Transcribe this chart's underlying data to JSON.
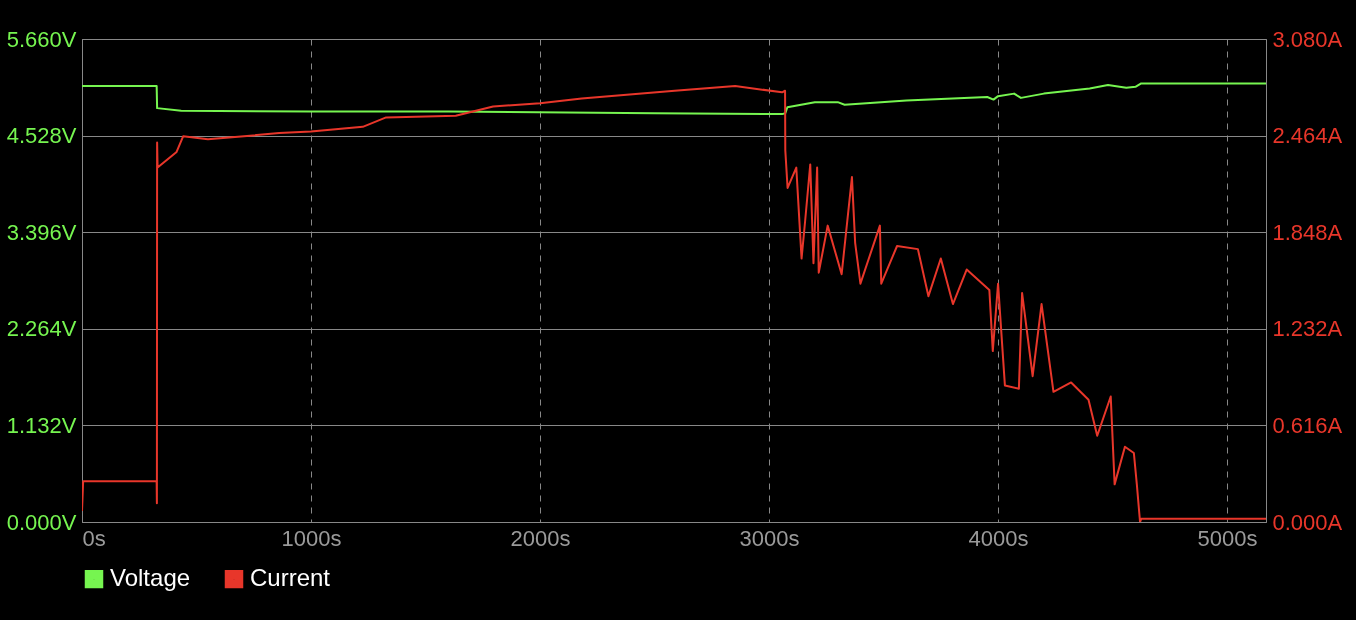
{
  "chart_data": {
    "type": "line",
    "grid": true,
    "legend": "bottom",
    "marker": "none",
    "line_style": "solid",
    "xlim": [
      0,
      5170
    ],
    "xticks": [
      {
        "value": 0,
        "label": "0s"
      },
      {
        "value": 1000,
        "label": "1000s"
      },
      {
        "value": 2000,
        "label": "2000s"
      },
      {
        "value": 3000,
        "label": "3000s"
      },
      {
        "value": 4000,
        "label": "4000s"
      },
      {
        "value": 5000,
        "label": "5000s"
      }
    ],
    "ylim": [
      0,
      5.66
    ],
    "yticks": [
      {
        "value": 0,
        "label": "0.000V"
      },
      {
        "value": 1.132,
        "label": "1.132V"
      },
      {
        "value": 2.264,
        "label": "2.264V"
      },
      {
        "value": 3.396,
        "label": "3.396V"
      },
      {
        "value": 4.528,
        "label": "4.528V"
      },
      {
        "value": 5.66,
        "label": "5.660V"
      }
    ],
    "y2lim": [
      0,
      3.08
    ],
    "y2ticks": [
      {
        "value": 0,
        "label": "0.000A"
      },
      {
        "value": 0.616,
        "label": "0.616A"
      },
      {
        "value": 1.232,
        "label": "1.232A"
      },
      {
        "value": 1.848,
        "label": "1.848A"
      },
      {
        "value": 2.464,
        "label": "2.464A"
      },
      {
        "value": 3.08,
        "label": "3.080A"
      }
    ],
    "series": [
      {
        "name": "Voltage",
        "color": "#76f550",
        "x": [
          0,
          326,
          328,
          433,
          1000,
          1600,
          2500,
          3057,
          3071,
          3080,
          3200,
          3300,
          3330,
          3600,
          3953,
          3980,
          4000,
          4070,
          4100,
          4200,
          4400,
          4480,
          4560,
          4600,
          4625,
          5170
        ],
        "values": [
          5.11,
          5.11,
          4.85,
          4.82,
          4.81,
          4.81,
          4.79,
          4.78,
          4.79,
          4.86,
          4.92,
          4.92,
          4.89,
          4.94,
          4.98,
          4.95,
          4.99,
          5.02,
          4.97,
          5.02,
          5.08,
          5.12,
          5.09,
          5.1,
          5.14,
          5.14
        ]
      },
      {
        "name": "Current",
        "color": "#e8362a",
        "axis": "y2",
        "x": [
          0,
          5,
          326,
          327,
          328,
          330,
          413,
          442,
          550,
          861,
          1000,
          1226,
          1328,
          1632,
          1795,
          2000,
          2182,
          2588,
          2852,
          3057,
          3070,
          3071,
          3081,
          3119,
          3142,
          3157,
          3180,
          3194,
          3210,
          3217,
          3256,
          3317,
          3362,
          3376,
          3399,
          3484,
          3490,
          3559,
          3650,
          3696,
          3750,
          3803,
          3863,
          3962,
          3977,
          4000,
          4030,
          4091,
          4105,
          4151,
          4190,
          4242,
          4319,
          4395,
          4433,
          4492,
          4509,
          4554,
          4593,
          4606,
          4620,
          4625,
          5170
        ],
        "values": [
          0.07,
          0.26,
          0.26,
          0.12,
          2.42,
          2.26,
          2.36,
          2.46,
          2.44,
          2.48,
          2.49,
          2.52,
          2.58,
          2.59,
          2.65,
          2.67,
          2.7,
          2.75,
          2.78,
          2.74,
          2.75,
          2.37,
          2.13,
          2.26,
          1.68,
          1.91,
          2.28,
          1.65,
          2.26,
          1.59,
          1.89,
          1.58,
          2.2,
          1.78,
          1.52,
          1.89,
          1.52,
          1.76,
          1.74,
          1.44,
          1.68,
          1.39,
          1.61,
          1.48,
          1.09,
          1.52,
          0.87,
          0.85,
          1.46,
          0.93,
          1.39,
          0.83,
          0.89,
          0.78,
          0.55,
          0.8,
          0.24,
          0.48,
          0.44,
          0.24,
          0.0,
          0.02,
          0.02
        ]
      }
    ]
  }
}
